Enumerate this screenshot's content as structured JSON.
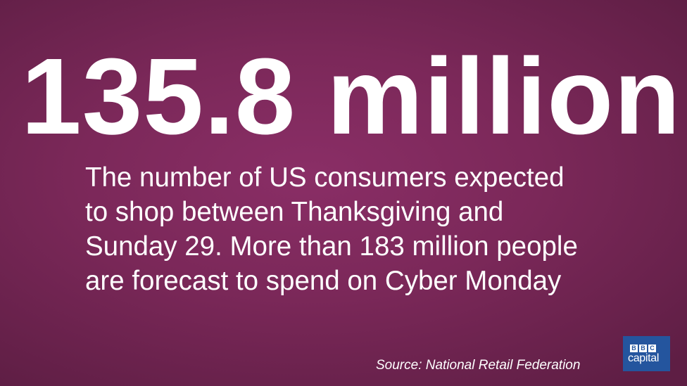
{
  "headline": "135.8 million",
  "description": {
    "lines": [
      "The number of US consumers expected",
      "to shop between Thanksgiving and",
      "Sunday 29. More than 183 million people",
      "are forecast to spend on Cyber Monday"
    ]
  },
  "source": "Source: National Retail Federation",
  "logo": {
    "letters": [
      "B",
      "B",
      "C"
    ],
    "word": "capital"
  },
  "colors": {
    "background": "#7b2859",
    "text": "#ffffff",
    "logo_background": "#24559e"
  }
}
